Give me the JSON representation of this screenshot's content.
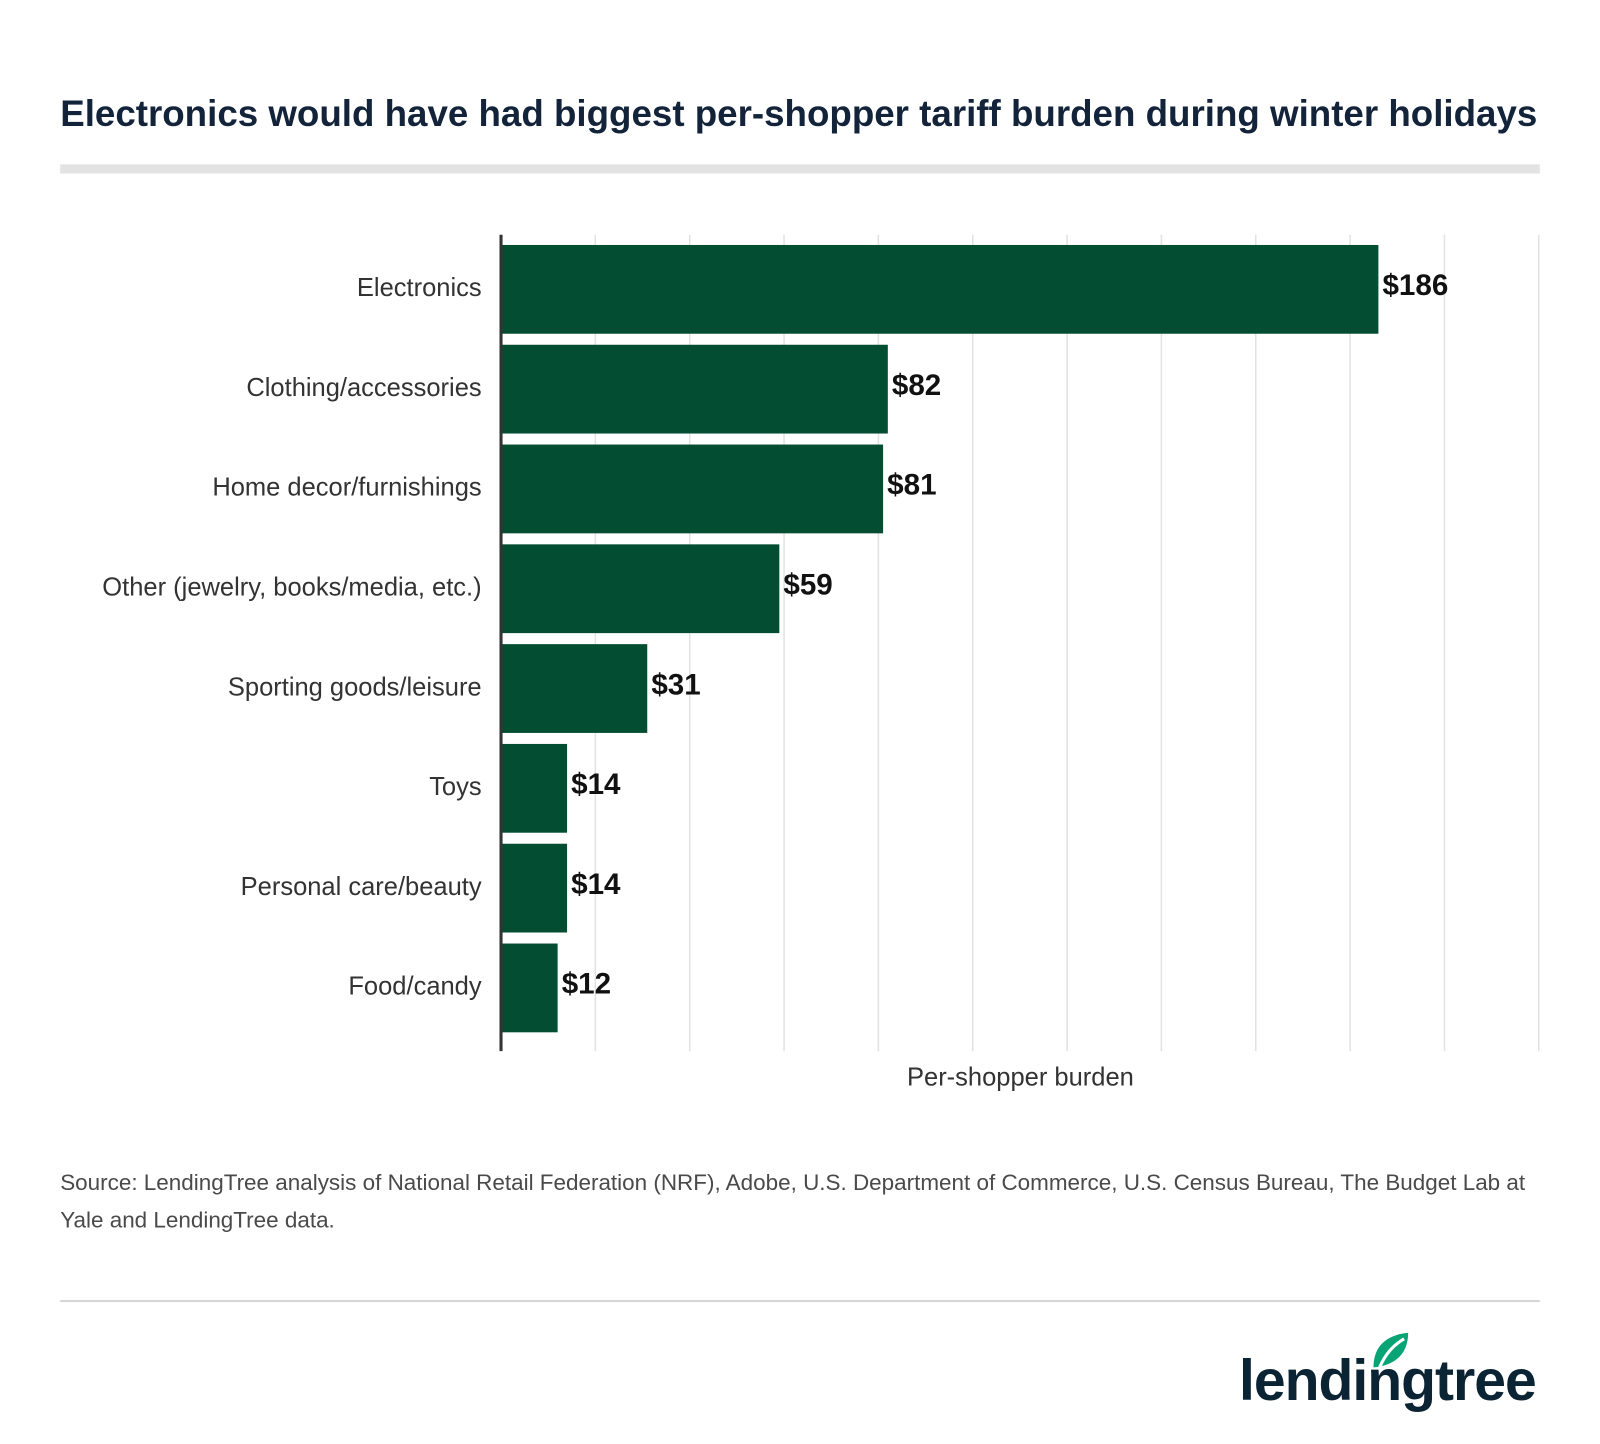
{
  "chart_data": {
    "type": "bar",
    "orientation": "horizontal",
    "title": "Electronics would have had biggest per-shopper tariff burden during winter holidays",
    "categories": [
      "Electronics",
      "Clothing/accessories",
      "Home decor/furnishings",
      "Other (jewelry, books/media, etc.)",
      "Sporting goods/leisure",
      "Toys",
      "Personal care/beauty",
      "Food/candy"
    ],
    "values": [
      186,
      82,
      81,
      59,
      31,
      14,
      14,
      12
    ],
    "value_labels": [
      "$186",
      "$82",
      "$81",
      "$59",
      "$31",
      "$14",
      "$14",
      "$12"
    ],
    "color": "#034d32",
    "xlabel": "Per-shopper burden",
    "xlim": [
      0,
      220
    ],
    "xticks": [
      0,
      20,
      40,
      60,
      80,
      100,
      120,
      140,
      160,
      180,
      200,
      220
    ],
    "grid": true,
    "source": "Source: LendingTree analysis of National Retail Federation (NRF), Adobe, U.S. Department of Commerce, U.S. Census Bureau, The Budget Lab at Yale and LendingTree data.",
    "logo": "lendingtree"
  }
}
